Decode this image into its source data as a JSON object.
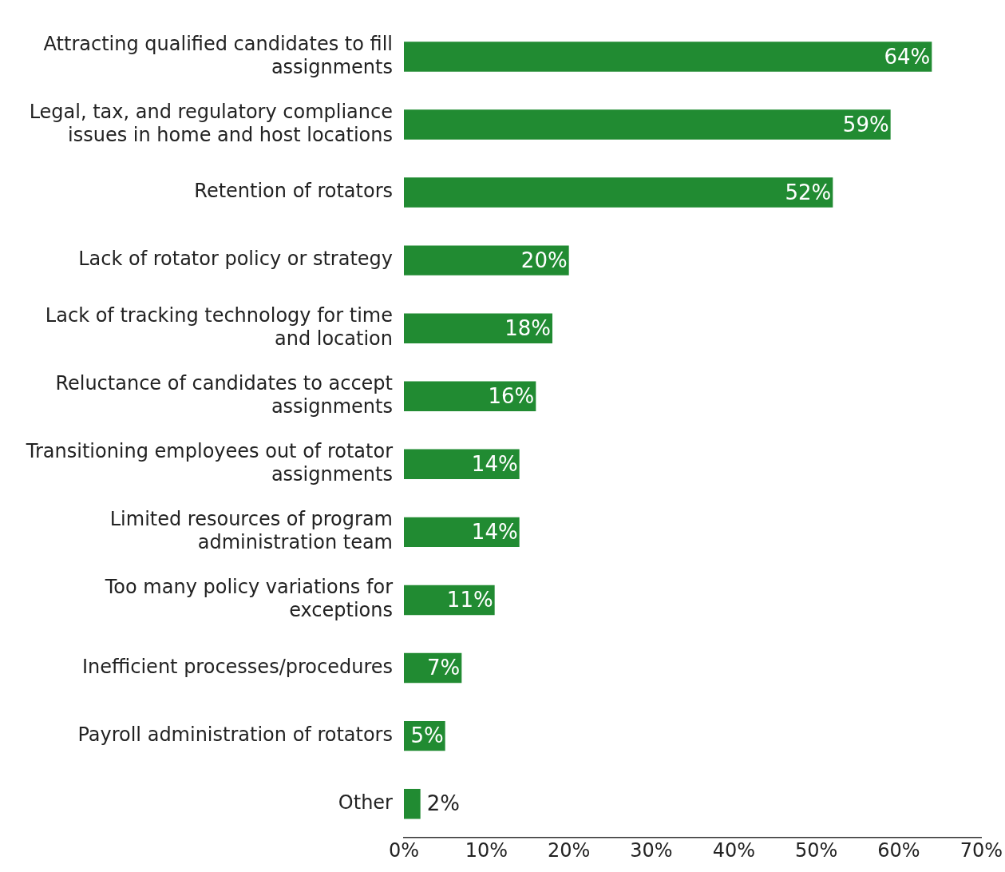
{
  "chart_data": {
    "type": "bar",
    "orientation": "horizontal",
    "categories": [
      "Attracting qualified candidates to fill assignments",
      "Legal, tax, and regulatory compliance issues in home and host locations",
      "Retention of rotators",
      "Lack of rotator policy or strategy",
      "Lack of tracking technology for time and location",
      "Reluctance of candidates to accept assignments",
      "Transitioning employees out of rotator assignments",
      "Limited resources of program administration team",
      "Too many policy variations for exceptions",
      "Inefficient processes/procedures",
      "Payroll administration of rotators",
      "Other"
    ],
    "values": [
      64,
      59,
      52,
      20,
      18,
      16,
      14,
      14,
      11,
      7,
      5,
      2
    ],
    "value_labels": [
      "64%",
      "59%",
      "52%",
      "20%",
      "18%",
      "16%",
      "14%",
      "14%",
      "11%",
      "7%",
      "5%",
      "2%"
    ],
    "color": "#218b32",
    "xlim": [
      0,
      70
    ],
    "xticks": [
      {
        "value": 0,
        "label": "0%"
      },
      {
        "value": 10,
        "label": "10%"
      },
      {
        "value": 20,
        "label": "20%"
      },
      {
        "value": 30,
        "label": "30%"
      },
      {
        "value": 40,
        "label": "40%"
      },
      {
        "value": 50,
        "label": "50%"
      },
      {
        "value": 60,
        "label": "60%"
      },
      {
        "value": 70,
        "label": "70%"
      }
    ],
    "grid": false,
    "legend": false
  }
}
